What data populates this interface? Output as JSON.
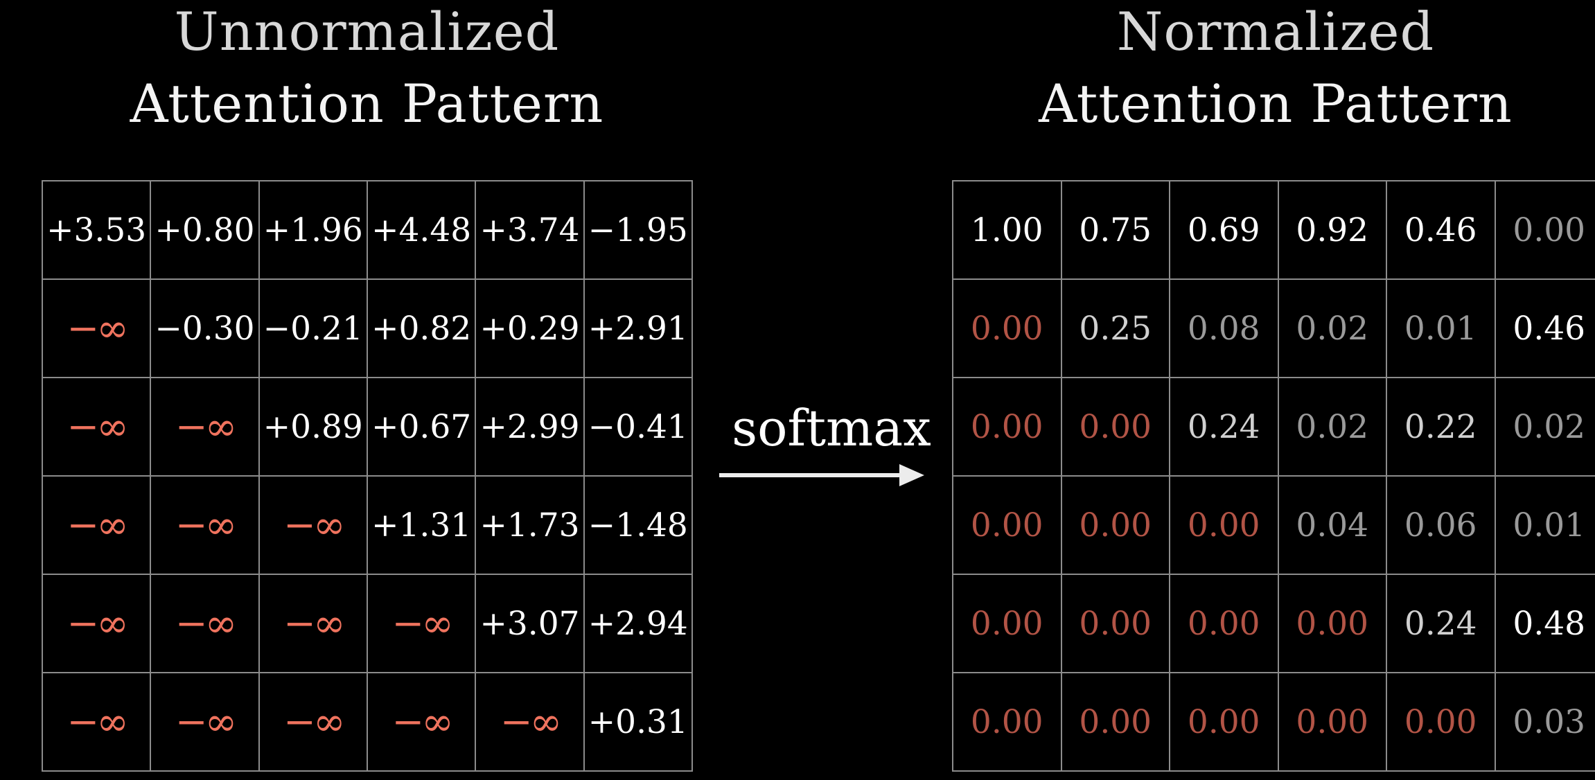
{
  "left_title": {
    "line1": "Unnormalized",
    "line2": "Attention Pattern"
  },
  "right_title": {
    "line1": "Normalized",
    "line2": "Attention Pattern"
  },
  "arrow_label": "softmax",
  "colors": {
    "background": "#000000",
    "grid_line": "#8c8c8c",
    "neg_infinity": "#f0735e",
    "masked_zero": "#b25446",
    "text": "#ffffff"
  },
  "unnormalized": [
    [
      "+3.53",
      "+0.80",
      "+1.96",
      "+4.48",
      "+3.74",
      "−1.95"
    ],
    [
      "−∞",
      "−0.30",
      "−0.21",
      "+0.82",
      "+0.29",
      "+2.91"
    ],
    [
      "−∞",
      "−∞",
      "+0.89",
      "+0.67",
      "+2.99",
      "−0.41"
    ],
    [
      "−∞",
      "−∞",
      "−∞",
      "+1.31",
      "+1.73",
      "−1.48"
    ],
    [
      "−∞",
      "−∞",
      "−∞",
      "−∞",
      "+3.07",
      "+2.94"
    ],
    [
      "−∞",
      "−∞",
      "−∞",
      "−∞",
      "−∞",
      "+0.31"
    ]
  ],
  "normalized": [
    [
      "1.00",
      "0.75",
      "0.69",
      "0.92",
      "0.46",
      "0.00"
    ],
    [
      "0.00",
      "0.25",
      "0.08",
      "0.02",
      "0.01",
      "0.46"
    ],
    [
      "0.00",
      "0.00",
      "0.24",
      "0.02",
      "0.22",
      "0.02"
    ],
    [
      "0.00",
      "0.00",
      "0.00",
      "0.04",
      "0.06",
      "0.01"
    ],
    [
      "0.00",
      "0.00",
      "0.00",
      "0.00",
      "0.24",
      "0.48"
    ],
    [
      "0.00",
      "0.00",
      "0.00",
      "0.00",
      "0.00",
      "0.03"
    ]
  ]
}
